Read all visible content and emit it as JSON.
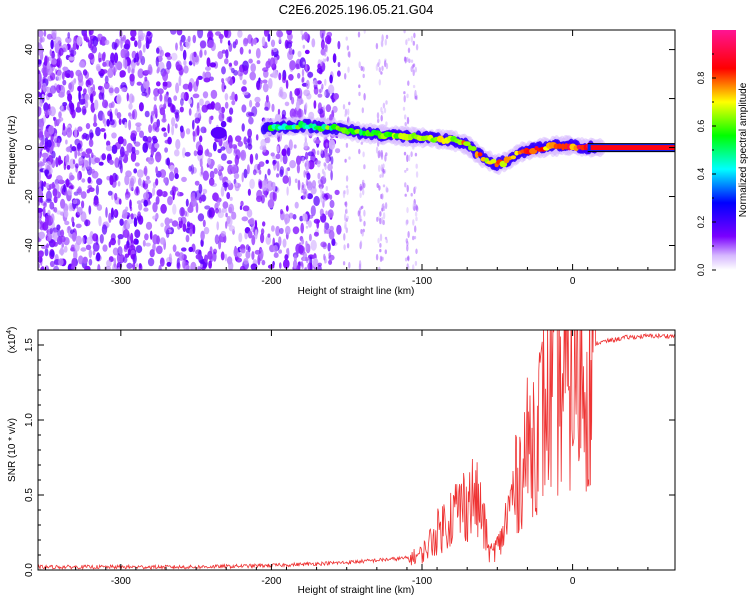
{
  "title": "C2E6.2025.196.05.21.G04",
  "chart_data": [
    {
      "type": "heatmap",
      "xlabel": "Height of straight line (km)",
      "ylabel": "Frequency (Hz)",
      "xlim": [
        -355,
        68
      ],
      "ylim": [
        -50,
        48
      ],
      "xticks": [
        -300,
        -200,
        -100,
        0
      ],
      "yticks": [
        -40,
        -20,
        0,
        20,
        40
      ],
      "colorbar": {
        "label": "Normalized spectral amplitude",
        "range": [
          0.0,
          1.0
        ],
        "ticks": [
          "0.0",
          "0.2",
          "0.4",
          "0.6",
          "0.8"
        ],
        "colors": [
          "#ffffff",
          "#7a00ff",
          "#0000ff",
          "#00ffff",
          "#00ff00",
          "#ffff00",
          "#ff0000",
          "#ff1493"
        ]
      },
      "signal_track": {
        "points": [
          [
            -200,
            8
          ],
          [
            -180,
            9
          ],
          [
            -160,
            8
          ],
          [
            -140,
            6
          ],
          [
            -120,
            5
          ],
          [
            -100,
            4
          ],
          [
            -80,
            3
          ],
          [
            -70,
            1
          ],
          [
            -60,
            -4
          ],
          [
            -50,
            -7
          ],
          [
            -42,
            -5
          ],
          [
            -35,
            -2
          ],
          [
            -20,
            0
          ],
          [
            -5,
            1
          ],
          [
            10,
            0
          ],
          [
            68,
            0
          ]
        ],
        "noise_region_end": -170,
        "detection_start": -200
      }
    },
    {
      "type": "line",
      "xlabel": "Height of straight line (km)",
      "ylabel": "SNR (10 * v/v)",
      "multiplier": "(x10",
      "multiplier_exp": "4",
      "multiplier_close": ")",
      "xlim": [
        -355,
        68
      ],
      "ylim": [
        0,
        1.6
      ],
      "xticks": [
        -300,
        -200,
        -100,
        0
      ],
      "yticks": [
        "0.0",
        "0.5",
        "1.0",
        "1.5"
      ],
      "series": [
        {
          "color": "#ee3333",
          "envelope": [
            [
              -355,
              0.02
            ],
            [
              -250,
              0.02
            ],
            [
              -200,
              0.03
            ],
            [
              -150,
              0.05
            ],
            [
              -110,
              0.08
            ],
            [
              -100,
              0.12
            ],
            [
              -90,
              0.28
            ],
            [
              -80,
              0.42
            ],
            [
              -70,
              0.52
            ],
            [
              -65,
              0.55
            ],
            [
              -60,
              0.4
            ],
            [
              -55,
              0.12
            ],
            [
              -48,
              0.2
            ],
            [
              -40,
              0.55
            ],
            [
              -30,
              0.9
            ],
            [
              -20,
              1.18
            ],
            [
              -10,
              1.35
            ],
            [
              0,
              1.42
            ],
            [
              10,
              1.5
            ],
            [
              20,
              1.52
            ],
            [
              35,
              1.55
            ],
            [
              50,
              1.56
            ],
            [
              68,
              1.56
            ]
          ]
        }
      ]
    }
  ]
}
